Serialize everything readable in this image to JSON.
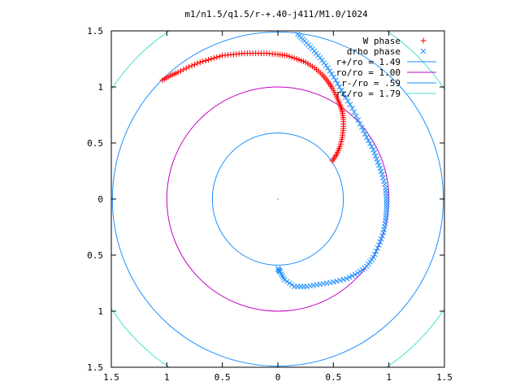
{
  "chart_data": {
    "type": "scatter",
    "title": "m1/n1.5/q1.5/r-+.40-j411/M1.0/1024",
    "xlabel": "",
    "ylabel": "",
    "xlim": [
      -1.5,
      1.5
    ],
    "ylim": [
      -1.5,
      1.5
    ],
    "x_tick_values": [
      -1.5,
      -1,
      -0.5,
      0,
      0.5,
      1,
      1.5
    ],
    "x_tick_labels": [
      "1.5",
      "1",
      "0.5",
      "0",
      "0.5",
      "1",
      "1.5"
    ],
    "y_tick_values": [
      1.5,
      1,
      0.5,
      0,
      -0.5,
      -1,
      -1.5
    ],
    "y_tick_labels": [
      "1.5",
      "1",
      "0.5",
      "0",
      "0.5",
      "1",
      "1.5"
    ],
    "grid": false,
    "legend_position": "top-right",
    "series": [
      {
        "name": "W phase",
        "marker": "plus",
        "color": "#ff0000",
        "points": [
          [
            0.49,
            0.34
          ],
          [
            0.53,
            0.4
          ],
          [
            0.56,
            0.47
          ],
          [
            0.58,
            0.55
          ],
          [
            0.59,
            0.63
          ],
          [
            0.59,
            0.71
          ],
          [
            0.58,
            0.78
          ],
          [
            0.56,
            0.84
          ],
          [
            0.53,
            0.91
          ],
          [
            0.49,
            0.99
          ],
          [
            0.45,
            1.05
          ],
          [
            0.4,
            1.11
          ],
          [
            0.33,
            1.17
          ],
          [
            0.25,
            1.22
          ],
          [
            0.17,
            1.25
          ],
          [
            0.08,
            1.28
          ],
          [
            0.0,
            1.29
          ],
          [
            -0.1,
            1.3
          ],
          [
            -0.2,
            1.3
          ],
          [
            -0.3,
            1.3
          ],
          [
            -0.4,
            1.29
          ],
          [
            -0.5,
            1.28
          ],
          [
            -0.6,
            1.25
          ],
          [
            -0.7,
            1.22
          ],
          [
            -0.8,
            1.18
          ],
          [
            -0.9,
            1.13
          ],
          [
            -0.97,
            1.1
          ],
          [
            -1.04,
            1.06
          ]
        ]
      },
      {
        "name": "drho phase",
        "marker": "cross",
        "color": "#1e90ff",
        "points": [
          [
            0.18,
            1.47
          ],
          [
            0.24,
            1.41
          ],
          [
            0.31,
            1.34
          ],
          [
            0.38,
            1.26
          ],
          [
            0.45,
            1.17
          ],
          [
            0.52,
            1.06
          ],
          [
            0.59,
            0.94
          ],
          [
            0.67,
            0.81
          ],
          [
            0.74,
            0.67
          ],
          [
            0.8,
            0.55
          ],
          [
            0.86,
            0.44
          ],
          [
            0.9,
            0.33
          ],
          [
            0.94,
            0.22
          ],
          [
            0.97,
            0.1
          ],
          [
            0.98,
            0.0
          ],
          [
            0.98,
            -0.09
          ],
          [
            0.97,
            -0.19
          ],
          [
            0.95,
            -0.3
          ],
          [
            0.91,
            -0.41
          ],
          [
            0.86,
            -0.52
          ],
          [
            0.8,
            -0.6
          ],
          [
            0.72,
            -0.66
          ],
          [
            0.62,
            -0.71
          ],
          [
            0.5,
            -0.74
          ],
          [
            0.38,
            -0.76
          ],
          [
            0.26,
            -0.78
          ],
          [
            0.15,
            -0.78
          ],
          [
            0.06,
            -0.72
          ],
          [
            0.02,
            -0.65
          ],
          [
            0.0,
            -0.62
          ]
        ]
      },
      {
        "name": "r+/ro = 1.49",
        "type": "circle",
        "radius": 1.49,
        "color": "#1e90ff"
      },
      {
        "name": "ro/ro = 1.00",
        "type": "circle",
        "radius": 1.0,
        "color": "#c000c0"
      },
      {
        "name": "r-/ro = .59",
        "type": "circle",
        "radius": 0.59,
        "color": "#1e90ff"
      },
      {
        "name": "rc/ro = 1.79",
        "type": "circle",
        "radius": 1.79,
        "color": "#40e0d0"
      }
    ]
  }
}
